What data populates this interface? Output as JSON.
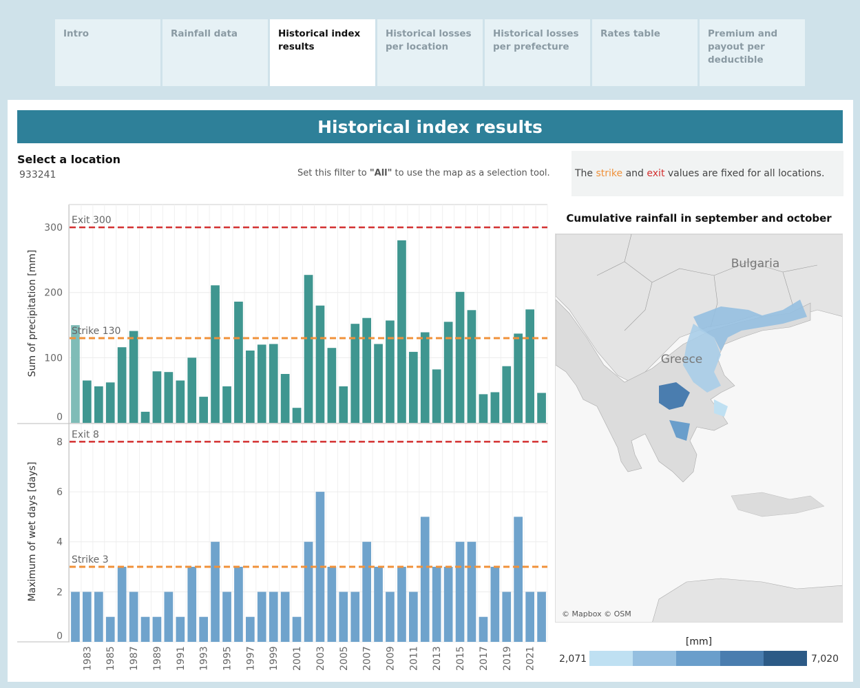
{
  "tabs": [
    {
      "label": "Intro"
    },
    {
      "label": "Rainfall data"
    },
    {
      "label": "Historical index results"
    },
    {
      "label": "Historical losses per location"
    },
    {
      "label": "Historical losses per prefecture"
    },
    {
      "label": "Rates table"
    },
    {
      "label": "Premium and payout per deductible"
    }
  ],
  "active_tab": 2,
  "banner_title": "Historical index results",
  "location": {
    "label": "Select a location",
    "value": "933241"
  },
  "filter_hint": {
    "pre": "Set this filter to ",
    "bold": "\"All\"",
    "post": " to use the map as a selection tool."
  },
  "info": {
    "t1": "The ",
    "strike": "strike",
    "t2": " and ",
    "exit": "exit",
    "t3": " values are fixed for all locations."
  },
  "colors": {
    "strike": "#f0913a",
    "exit": "#d32f2f",
    "bar_precip": "#3f9690",
    "bar_precip_highlight": "#7fbcb7",
    "bar_wet": "#6fa3cc",
    "banner": "#2e8099"
  },
  "chart_data": [
    {
      "type": "bar",
      "id": "precip",
      "ylabel": "Sum of precipitation [mm]",
      "ylim": [
        0,
        335
      ],
      "yticks": [
        0,
        100,
        200,
        300
      ],
      "x": [
        1982,
        1983,
        1984,
        1985,
        1986,
        1987,
        1988,
        1989,
        1990,
        1991,
        1992,
        1993,
        1994,
        1995,
        1996,
        1997,
        1998,
        1999,
        2000,
        2001,
        2002,
        2003,
        2004,
        2005,
        2006,
        2007,
        2008,
        2009,
        2010,
        2011,
        2012,
        2013,
        2014,
        2015,
        2016,
        2017,
        2018,
        2019,
        2020,
        2021,
        2022
      ],
      "values": [
        150,
        65,
        56,
        62,
        116,
        141,
        17,
        79,
        78,
        65,
        100,
        40,
        211,
        56,
        186,
        111,
        120,
        121,
        75,
        23,
        227,
        180,
        115,
        56,
        152,
        161,
        121,
        157,
        280,
        109,
        139,
        82,
        155,
        201,
        173,
        44,
        47,
        87,
        137,
        174,
        46
      ],
      "highlight_index": 0,
      "reference_lines": [
        {
          "label": "Exit 300",
          "value": 300,
          "kind": "exit"
        },
        {
          "label": "Strike 130",
          "value": 130,
          "kind": "strike"
        }
      ]
    },
    {
      "type": "bar",
      "id": "wetdays",
      "ylabel": "Maximum of wet days [days]",
      "ylim": [
        0,
        8.7
      ],
      "yticks": [
        0,
        2,
        4,
        6,
        8
      ],
      "x": [
        1982,
        1983,
        1984,
        1985,
        1986,
        1987,
        1988,
        1989,
        1990,
        1991,
        1992,
        1993,
        1994,
        1995,
        1996,
        1997,
        1998,
        1999,
        2000,
        2001,
        2002,
        2003,
        2004,
        2005,
        2006,
        2007,
        2008,
        2009,
        2010,
        2011,
        2012,
        2013,
        2014,
        2015,
        2016,
        2017,
        2018,
        2019,
        2020,
        2021,
        2022
      ],
      "values": [
        2,
        2,
        2,
        1,
        3,
        2,
        1,
        1,
        2,
        1,
        3,
        1,
        4,
        2,
        3,
        1,
        2,
        2,
        2,
        1,
        4,
        6,
        3,
        2,
        2,
        4,
        3,
        2,
        3,
        2,
        5,
        3,
        3,
        4,
        4,
        1,
        3,
        2,
        5,
        2,
        2
      ],
      "xtick_labels": [
        "1983",
        "1985",
        "1987",
        "1989",
        "1991",
        "1993",
        "1995",
        "1997",
        "1999",
        "2001",
        "2003",
        "2005",
        "2007",
        "2009",
        "2011",
        "2013",
        "2015",
        "2017",
        "2019",
        "2021"
      ],
      "reference_lines": [
        {
          "label": "Exit 8",
          "value": 8,
          "kind": "exit"
        },
        {
          "label": "Strike 3",
          "value": 3,
          "kind": "strike"
        }
      ]
    }
  ],
  "map": {
    "title": "Cumulative rainfall in september and october",
    "labels": {
      "country1": "Bulgaria",
      "country2": "Greece"
    },
    "attribution": "© Mapbox © OSM"
  },
  "legend": {
    "title": "[mm]",
    "min": "2,071",
    "max": "7,020",
    "colors": [
      "#bfe0f2",
      "#95bfe0",
      "#6a9ecb",
      "#4a7daf",
      "#2c5a86"
    ]
  }
}
